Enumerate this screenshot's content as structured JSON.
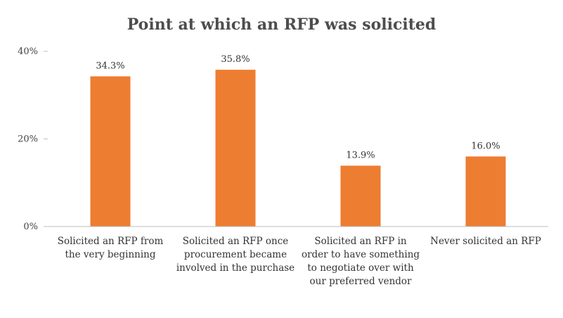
{
  "chart_data": {
    "type": "bar",
    "title": "Point at which an RFP was solicited",
    "categories": [
      "Solicited an RFP from the very beginning",
      "Solicited an RFP once procurement became involved in the purchase",
      "Solicited an RFP in order to have something to negotiate over with our preferred vendor",
      "Never solicited an RFP"
    ],
    "values": [
      34.3,
      35.8,
      13.9,
      16.0
    ],
    "data_labels": [
      "34.3%",
      "35.8%",
      "13.9%",
      "16.0%"
    ],
    "ylim": [
      0,
      40
    ],
    "y_ticks": [
      0,
      20,
      40
    ],
    "y_tick_labels": [
      "0%",
      "20%",
      "40%"
    ],
    "xlabel": "",
    "ylabel": "",
    "grid": false,
    "legend": "none",
    "bar_color": "#ED7D31"
  }
}
